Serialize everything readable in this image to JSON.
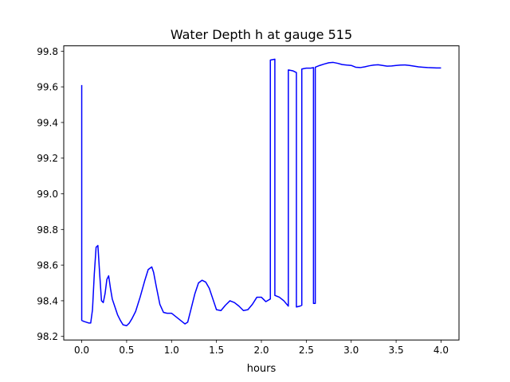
{
  "chart_data": {
    "type": "line",
    "title": "Water Depth h at gauge 515",
    "xlabel": "hours",
    "ylabel": "",
    "xlim": [
      -0.2,
      4.2
    ],
    "ylim": [
      98.18,
      99.83
    ],
    "xticks": [
      0.0,
      0.5,
      1.0,
      1.5,
      2.0,
      2.5,
      3.0,
      3.5,
      4.0
    ],
    "xtick_labels": [
      "0.0",
      "0.5",
      "1.0",
      "1.5",
      "2.0",
      "2.5",
      "3.0",
      "3.5",
      "4.0"
    ],
    "yticks": [
      98.2,
      98.4,
      98.6,
      98.8,
      99.0,
      99.2,
      99.4,
      99.6,
      99.8
    ],
    "ytick_labels": [
      "98.2",
      "98.4",
      "98.6",
      "98.8",
      "99.0",
      "99.2",
      "99.4",
      "99.6",
      "99.8"
    ],
    "grid": false,
    "legend": "none",
    "series": [
      {
        "color": "#0000ff",
        "x": [
          0.0,
          0.0,
          0.02,
          0.05,
          0.08,
          0.1,
          0.12,
          0.14,
          0.16,
          0.18,
          0.2,
          0.22,
          0.24,
          0.26,
          0.28,
          0.3,
          0.32,
          0.34,
          0.36,
          0.38,
          0.4,
          0.43,
          0.46,
          0.5,
          0.53,
          0.56,
          0.6,
          0.65,
          0.7,
          0.74,
          0.78,
          0.8,
          0.83,
          0.87,
          0.91,
          0.95,
          1.0,
          1.05,
          1.1,
          1.15,
          1.18,
          1.22,
          1.26,
          1.3,
          1.34,
          1.38,
          1.42,
          1.46,
          1.5,
          1.55,
          1.6,
          1.65,
          1.7,
          1.75,
          1.8,
          1.85,
          1.9,
          1.95,
          2.0,
          2.05,
          2.1,
          2.1,
          2.15,
          2.15,
          2.2,
          2.25,
          2.3,
          2.3,
          2.35,
          2.39,
          2.39,
          2.43,
          2.45,
          2.45,
          2.5,
          2.55,
          2.58,
          2.58,
          2.6,
          2.6,
          2.65,
          2.7,
          2.75,
          2.8,
          2.85,
          2.9,
          2.95,
          3.0,
          3.05,
          3.1,
          3.15,
          3.2,
          3.25,
          3.3,
          3.35,
          3.4,
          3.45,
          3.5,
          3.55,
          3.6,
          3.65,
          3.7,
          3.75,
          3.8,
          3.85,
          3.9,
          3.95,
          4.0
        ],
        "y": [
          99.61,
          98.29,
          98.285,
          98.28,
          98.275,
          98.275,
          98.35,
          98.55,
          98.7,
          98.71,
          98.55,
          98.4,
          98.39,
          98.44,
          98.52,
          98.54,
          98.47,
          98.41,
          98.38,
          98.35,
          98.32,
          98.29,
          98.265,
          98.26,
          98.275,
          98.3,
          98.34,
          98.42,
          98.51,
          98.575,
          98.59,
          98.56,
          98.48,
          98.38,
          98.335,
          98.33,
          98.33,
          98.31,
          98.29,
          98.27,
          98.28,
          98.36,
          98.44,
          98.5,
          98.515,
          98.505,
          98.47,
          98.41,
          98.35,
          98.345,
          98.375,
          98.4,
          98.39,
          98.37,
          98.345,
          98.35,
          98.38,
          98.42,
          98.42,
          98.395,
          98.41,
          99.75,
          99.755,
          98.43,
          98.42,
          98.4,
          98.37,
          99.695,
          99.69,
          99.68,
          98.365,
          98.37,
          98.375,
          99.7,
          99.705,
          99.705,
          99.708,
          98.385,
          98.385,
          99.71,
          99.72,
          99.728,
          99.735,
          99.737,
          99.732,
          99.725,
          99.722,
          99.72,
          99.71,
          99.708,
          99.712,
          99.718,
          99.722,
          99.724,
          99.72,
          99.716,
          99.717,
          99.72,
          99.722,
          99.723,
          99.72,
          99.716,
          99.712,
          99.71,
          99.708,
          99.707,
          99.706,
          99.706
        ]
      }
    ]
  }
}
